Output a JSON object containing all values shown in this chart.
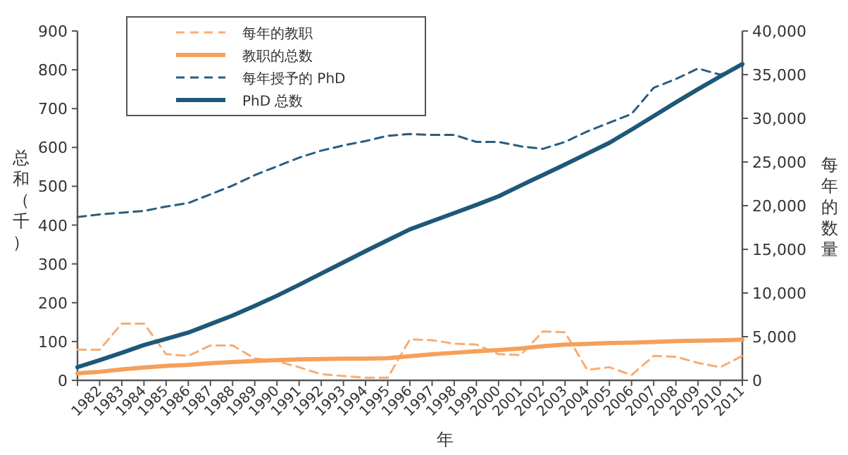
{
  "chart_data": {
    "type": "line",
    "xlabel": "年",
    "ylabel": "总和（千）",
    "y2label": "每年的数量",
    "x": [
      1981,
      1982,
      1983,
      1984,
      1985,
      1986,
      1987,
      1988,
      1989,
      1990,
      1991,
      1992,
      1993,
      1994,
      1995,
      1996,
      1997,
      1998,
      1999,
      2000,
      2001,
      2002,
      2003,
      2004,
      2005,
      2006,
      2007,
      2008,
      2009,
      2010,
      2011
    ],
    "series": [
      {
        "name": "每年的教职",
        "color": "#f7ad74",
        "axis": "y2",
        "line_style": "dashed",
        "values": [
          3500,
          3500,
          6500,
          6500,
          3000,
          2800,
          4000,
          4000,
          2500,
          2200,
          1500,
          700,
          500,
          300,
          300,
          4700,
          4600,
          4200,
          4100,
          3000,
          2900,
          5600,
          5500,
          1200,
          1500,
          600,
          2800,
          2700,
          2000,
          1500,
          2800
        ]
      },
      {
        "name": "教职的总数",
        "color": "#f5a05a",
        "line_style": "solid",
        "values": [
          18,
          22,
          28,
          33,
          37,
          40,
          44,
          47,
          50,
          52,
          54,
          55,
          56,
          56,
          57,
          62,
          67,
          71,
          75,
          78,
          82,
          88,
          92,
          94,
          96,
          97,
          99,
          101,
          102,
          103,
          105
        ]
      },
      {
        "name": "每年授予的 PhD",
        "color": "#2a5d80",
        "axis": "y2",
        "line_style": "dashed",
        "values": [
          18700,
          19000,
          19200,
          19400,
          19900,
          20300,
          21300,
          22300,
          23500,
          24500,
          25500,
          26300,
          26900,
          27400,
          28000,
          28200,
          28100,
          28100,
          27300,
          27300,
          26800,
          26500,
          27300,
          28500,
          29500,
          30500,
          33500,
          34500,
          35700,
          35000,
          36000
        ]
      },
      {
        "name": "PhD 总数",
        "color": "#1e5878",
        "line_style": "solid",
        "values": [
          34,
          52,
          71,
          91,
          107,
          123,
          145,
          167,
          192,
          218,
          246,
          275,
          304,
          333,
          361,
          389,
          410,
          431,
          452,
          474,
          502,
          529,
          556,
          584,
          612,
          646,
          681,
          716,
          750,
          783,
          815
        ]
      }
    ],
    "xlim": [
      1981,
      2011
    ],
    "xticks": [
      {
        "value": 1981,
        "label": null
      },
      1982,
      1983,
      1984,
      1985,
      1986,
      1987,
      1988,
      1989,
      1990,
      1991,
      1992,
      1993,
      1994,
      1995,
      1996,
      1997,
      1998,
      1999,
      2000,
      2001,
      2002,
      2003,
      2004,
      2005,
      2006,
      2007,
      2008,
      2009,
      2010,
      2011
    ],
    "ylim": [
      0,
      900
    ],
    "yticks": [
      0,
      100,
      200,
      300,
      400,
      500,
      600,
      700,
      800,
      900
    ],
    "y2lim": [
      0,
      40000
    ],
    "y2ticks": [
      0,
      {
        "value": 5000,
        "label": "5,000"
      },
      {
        "value": 10000,
        "label": "10,000"
      },
      {
        "value": 15000,
        "label": "15,000"
      },
      {
        "value": 20000,
        "label": "20,000"
      },
      {
        "value": 25000,
        "label": "25,000"
      },
      {
        "value": 30000,
        "label": "30,000"
      },
      {
        "value": 35000,
        "label": "35,000"
      },
      {
        "value": 40000,
        "label": "40,000"
      }
    ],
    "legend": "top left",
    "grid": false,
    "marker": "none"
  }
}
